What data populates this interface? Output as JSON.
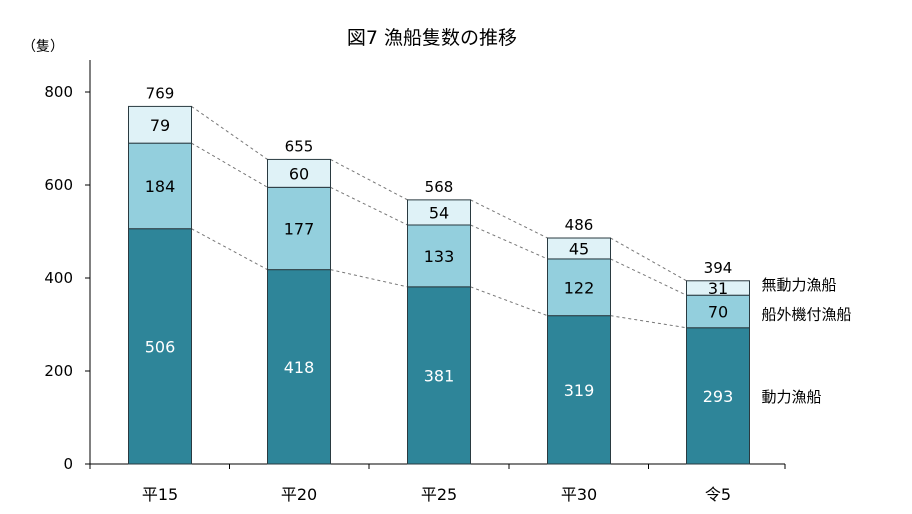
{
  "chart_data": {
    "type": "bar",
    "stacked": true,
    "title": "図7 漁船隻数の推移",
    "unit_label": "（隻）",
    "categories": [
      "平15",
      "平20",
      "平25",
      "平30",
      "令5"
    ],
    "series": [
      {
        "name": "動力漁船",
        "values": [
          506,
          418,
          381,
          319,
          293
        ],
        "color": "#2e8599",
        "label_color": "#ffffff"
      },
      {
        "name": "船外機付漁船",
        "values": [
          184,
          177,
          133,
          122,
          70
        ],
        "color": "#93cfdd",
        "label_color": "#000000"
      },
      {
        "name": "無動力漁船",
        "values": [
          79,
          60,
          54,
          45,
          31
        ],
        "color": "#dff2f7",
        "label_color": "#000000"
      }
    ],
    "totals": [
      769,
      655,
      568,
      486,
      394
    ],
    "ylim": [
      0,
      800
    ],
    "yticks": [
      0,
      200,
      400,
      600,
      800
    ],
    "connector_lines": true,
    "legend_placement": "right of last bar",
    "grid": false
  }
}
